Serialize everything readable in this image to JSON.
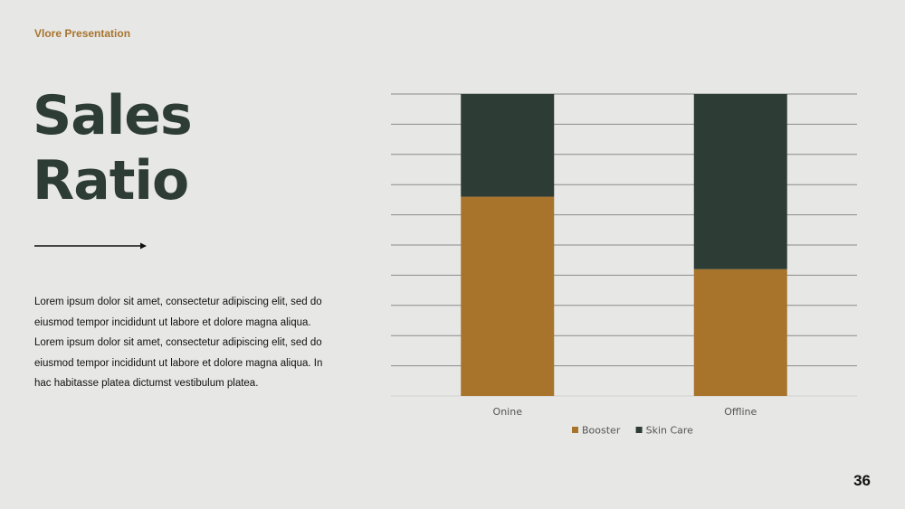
{
  "header": {
    "brand": "Vlore Presentation"
  },
  "title": {
    "line1": "Sales",
    "line2": "Ratio"
  },
  "body": {
    "paragraph": "Lorem ipsum dolor sit amet, consectetur adipiscing elit, sed do eiusmod tempor incididunt ut labore et dolore magna aliqua. Lorem ipsum dolor sit amet, consectetur adipiscing elit, sed do eiusmod tempor incididunt ut labore et dolore magna aliqua. In hac habitasse platea dictumst vestibulum platea."
  },
  "footer": {
    "page_number": "36"
  },
  "colors": {
    "booster": "#a8742c",
    "skin_care": "#2d3c34",
    "accent": "#a8742c"
  },
  "chart_data": {
    "type": "bar",
    "stacked": true,
    "categories": [
      "Onine",
      "Offline"
    ],
    "series": [
      {
        "name": "Booster",
        "values": [
          66,
          42
        ]
      },
      {
        "name": "Skin Care",
        "values": [
          34,
          58
        ]
      }
    ],
    "ylim": [
      0,
      100
    ],
    "grid": true,
    "legend_position": "bottom"
  }
}
